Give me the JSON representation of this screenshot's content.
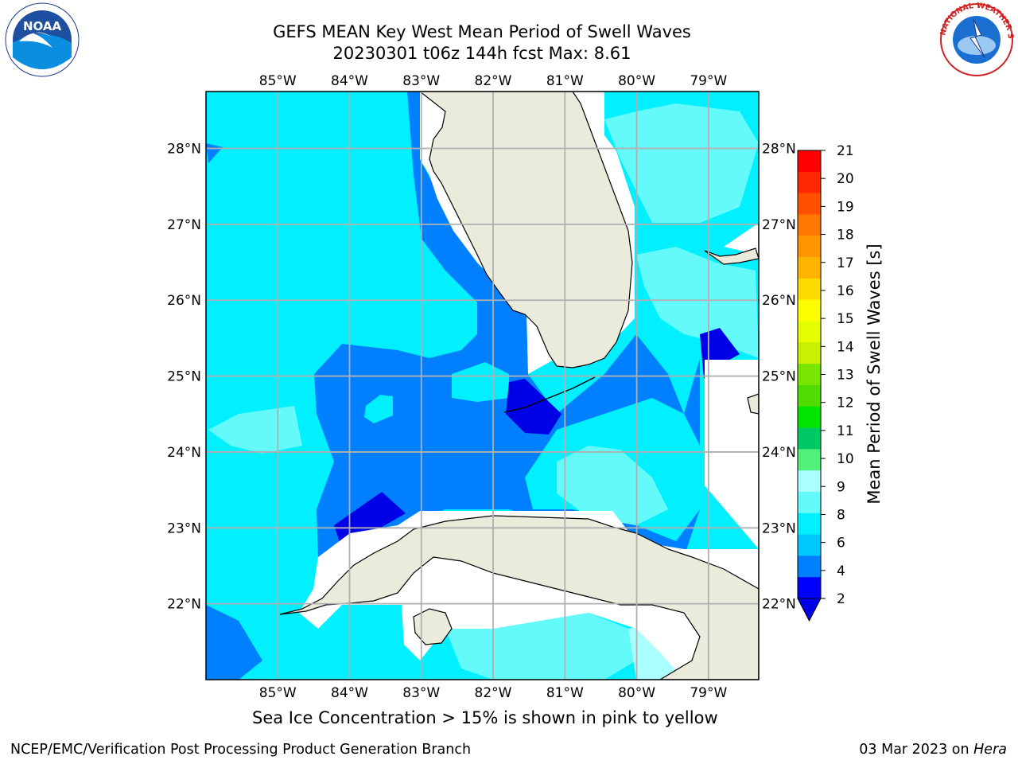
{
  "title": {
    "line1": "GEFS MEAN Key West Mean Period of Swell Waves",
    "line2": "20230301 t06z 144h fcst   Max: 8.61"
  },
  "logos": {
    "left": "noaa-logo",
    "right": "nws-logo",
    "left_text": "NOAA",
    "right_text": "NATIONAL WEATHER SERVICE"
  },
  "map": {
    "lon_labels": [
      "85°W",
      "84°W",
      "83°W",
      "82°W",
      "81°W",
      "80°W",
      "79°W"
    ],
    "lat_labels": [
      "28°N",
      "27°N",
      "26°N",
      "25°N",
      "24°N",
      "23°N",
      "22°N"
    ],
    "lon_range": [
      -86,
      -78.3
    ],
    "lat_range": [
      21,
      28.75
    ]
  },
  "colorbar": {
    "label": "Mean Period of Swell Waves [s]",
    "ticks": [
      "21",
      "20",
      "19",
      "18",
      "17",
      "16",
      "15",
      "14",
      "13",
      "12",
      "11",
      "10",
      "9",
      "8",
      "6",
      "4",
      "2"
    ],
    "colors": [
      "#ff0000",
      "#ff2800",
      "#ff5000",
      "#ff7800",
      "#ff9600",
      "#ffb400",
      "#ffdc00",
      "#ffff00",
      "#e6ff00",
      "#c8f000",
      "#78e600",
      "#50dc00",
      "#00e600",
      "#00c864",
      "#50f07a",
      "#aaffff",
      "#64fafa",
      "#00f0ff",
      "#00c8ff",
      "#0080ff",
      "#0000ff"
    ],
    "under_color": "#0000e6"
  },
  "note": "Sea Ice Concentration > 15% is shown in pink to yellow",
  "footer": {
    "left": "NCEP/EMC/Verification Post Processing Product Generation Branch",
    "right_date": "03 Mar 2023 on ",
    "right_host": "Hera"
  }
}
